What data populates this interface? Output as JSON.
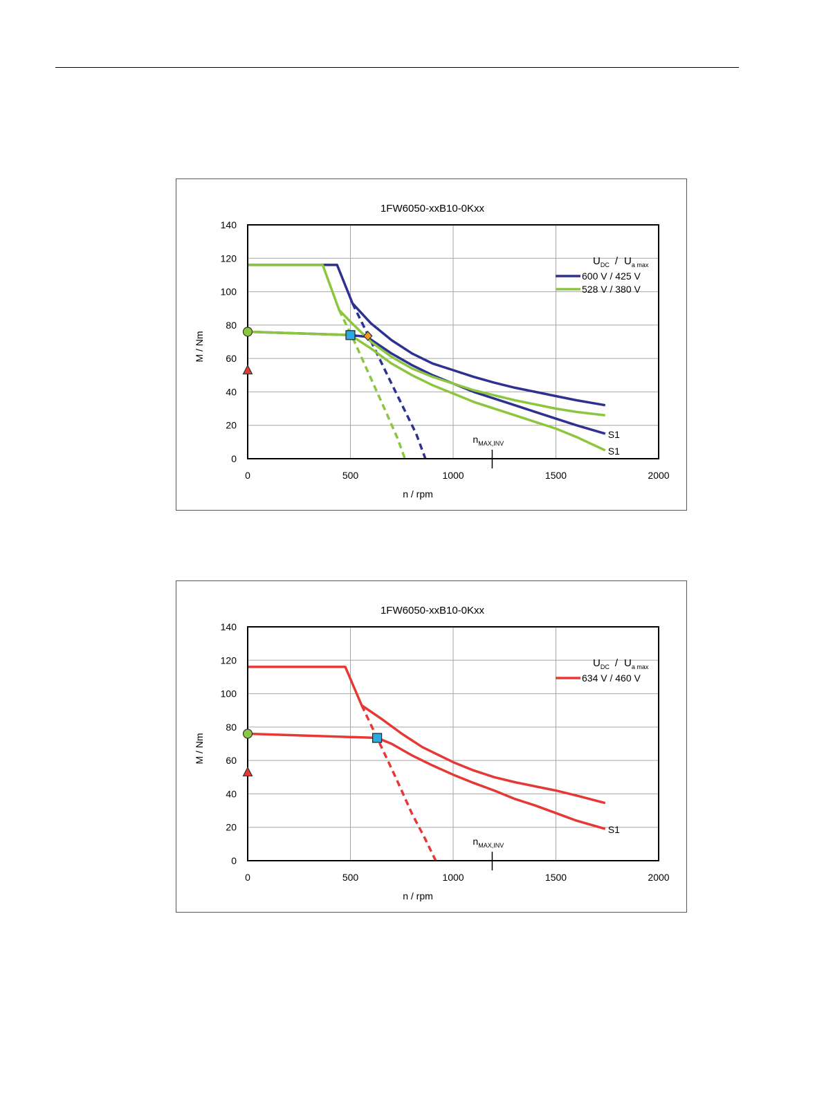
{
  "chart_data": [
    {
      "type": "line",
      "title": "1FW6050-xxB10-0Kxx",
      "xlabel": "n / rpm",
      "ylabel": "M / Nm",
      "xlim": [
        0,
        2000
      ],
      "ylim": [
        0,
        140
      ],
      "xticks": [
        "0",
        "500",
        "1000",
        "1500",
        "2000"
      ],
      "yticks": [
        "0",
        "20",
        "40",
        "60",
        "80",
        "100",
        "120",
        "140"
      ],
      "grid": true,
      "legend_position": "top-right",
      "legend_header": {
        "main1": "U",
        "sub1": "DC",
        "sep": "/",
        "main2": "U",
        "sub2": "a max"
      },
      "vline": {
        "x": 1190,
        "label_main": "n",
        "label_sub": "MAX,INV"
      },
      "series": [
        {
          "name": "600 V / 425 V",
          "color": "#2e3192",
          "style": "solid",
          "points": [
            [
              0,
              116
            ],
            [
              435,
              116
            ],
            [
              510,
              93
            ],
            [
              600,
              81
            ],
            [
              700,
              71
            ],
            [
              800,
              63
            ],
            [
              900,
              57
            ],
            [
              1000,
              53
            ],
            [
              1100,
              49
            ],
            [
              1200,
              45.5
            ],
            [
              1300,
              42.5
            ],
            [
              1400,
              40
            ],
            [
              1500,
              37.5
            ],
            [
              1600,
              35
            ],
            [
              1740,
              32
            ]
          ]
        },
        {
          "name": "",
          "color": "#2e3192",
          "style": "solid",
          "end_label": "S1",
          "points": [
            [
              0,
              76
            ],
            [
              500,
              74
            ],
            [
              580,
              73
            ],
            [
              700,
              63
            ],
            [
              800,
              56
            ],
            [
              900,
              50
            ],
            [
              1000,
              45
            ],
            [
              1100,
              40
            ],
            [
              1200,
              36
            ],
            [
              1300,
              32
            ],
            [
              1400,
              28
            ],
            [
              1500,
              24
            ],
            [
              1600,
              20
            ],
            [
              1740,
              15
            ]
          ]
        },
        {
          "name": "",
          "color": "#2e3192",
          "style": "dashed",
          "points": [
            [
              510,
              93
            ],
            [
              590,
              73
            ],
            [
              680,
              50
            ],
            [
              760,
              30
            ],
            [
              820,
              15
            ],
            [
              865,
              0
            ]
          ]
        },
        {
          "name": "528 V / 380 V",
          "color": "#8cc63f",
          "style": "solid",
          "points": [
            [
              0,
              116
            ],
            [
              365,
              116
            ],
            [
              445,
              89
            ],
            [
              500,
              82
            ],
            [
              600,
              70
            ],
            [
              700,
              61
            ],
            [
              800,
              54
            ],
            [
              900,
              49
            ],
            [
              1000,
              45
            ],
            [
              1100,
              41
            ],
            [
              1200,
              38
            ],
            [
              1300,
              35
            ],
            [
              1400,
              32.5
            ],
            [
              1500,
              30
            ],
            [
              1600,
              28
            ],
            [
              1740,
              26
            ]
          ]
        },
        {
          "name": "",
          "color": "#8cc63f",
          "style": "solid",
          "end_label": "S1",
          "points": [
            [
              0,
              76
            ],
            [
              500,
              74
            ],
            [
              600,
              66
            ],
            [
              700,
              57
            ],
            [
              800,
              50
            ],
            [
              900,
              44
            ],
            [
              1000,
              39
            ],
            [
              1100,
              34
            ],
            [
              1200,
              30
            ],
            [
              1300,
              26
            ],
            [
              1400,
              22
            ],
            [
              1500,
              18
            ],
            [
              1600,
              13
            ],
            [
              1740,
              5
            ]
          ]
        },
        {
          "name": "",
          "color": "#8cc63f",
          "style": "dashed",
          "points": [
            [
              445,
              89
            ],
            [
              520,
              70
            ],
            [
              600,
              48
            ],
            [
              680,
              26
            ],
            [
              730,
              12
            ],
            [
              765,
              0
            ]
          ]
        }
      ],
      "markers": [
        {
          "shape": "circle",
          "x": 0,
          "y": 76,
          "color": "#8cc63f"
        },
        {
          "shape": "triangle",
          "x": 0,
          "y": 53,
          "color": "#e53935"
        },
        {
          "shape": "square",
          "x": 500,
          "y": 74,
          "color": "#29abe2"
        },
        {
          "shape": "diamond",
          "x": 585,
          "y": 73.5,
          "color": "#f7941d"
        }
      ]
    },
    {
      "type": "line",
      "title": "1FW6050-xxB10-0Kxx",
      "xlabel": "n / rpm",
      "ylabel": "M / Nm",
      "xlim": [
        0,
        2000
      ],
      "ylim": [
        0,
        140
      ],
      "xticks": [
        "0",
        "500",
        "1000",
        "1500",
        "2000"
      ],
      "yticks": [
        "0",
        "20",
        "40",
        "60",
        "80",
        "100",
        "120",
        "140"
      ],
      "grid": true,
      "legend_position": "top-right",
      "legend_header": {
        "main1": "U",
        "sub1": "DC",
        "sep": "/",
        "main2": "U",
        "sub2": "a max"
      },
      "vline": {
        "x": 1190,
        "label_main": "n",
        "label_sub": "MAX,INV"
      },
      "series": [
        {
          "name": "634 V / 460 V",
          "color": "#e53935",
          "style": "solid",
          "points": [
            [
              0,
              116
            ],
            [
              475,
              116
            ],
            [
              555,
              93
            ],
            [
              650,
              85
            ],
            [
              750,
              76
            ],
            [
              850,
              68
            ],
            [
              1000,
              59
            ],
            [
              1100,
              54
            ],
            [
              1200,
              50
            ],
            [
              1300,
              47
            ],
            [
              1400,
              44.5
            ],
            [
              1500,
              42
            ],
            [
              1600,
              39
            ],
            [
              1740,
              34.5
            ]
          ]
        },
        {
          "name": "",
          "color": "#e53935",
          "style": "solid",
          "end_label": "S1",
          "points": [
            [
              0,
              76
            ],
            [
              630,
              73.5
            ],
            [
              700,
              70
            ],
            [
              800,
              63
            ],
            [
              900,
              57
            ],
            [
              1000,
              51.5
            ],
            [
              1100,
              46.5
            ],
            [
              1200,
              42
            ],
            [
              1300,
              37
            ],
            [
              1400,
              33
            ],
            [
              1500,
              28.5
            ],
            [
              1600,
              24
            ],
            [
              1740,
              19
            ]
          ]
        },
        {
          "name": "",
          "color": "#e53935",
          "style": "dashed",
          "points": [
            [
              555,
              93
            ],
            [
              630,
              73.5
            ],
            [
              720,
              50
            ],
            [
              800,
              28
            ],
            [
              860,
              14
            ],
            [
              915,
              0
            ]
          ]
        }
      ],
      "markers": [
        {
          "shape": "circle",
          "x": 0,
          "y": 76,
          "color": "#8cc63f"
        },
        {
          "shape": "triangle",
          "x": 0,
          "y": 53,
          "color": "#e53935"
        },
        {
          "shape": "square",
          "x": 630,
          "y": 73.5,
          "color": "#29abe2"
        }
      ]
    }
  ]
}
